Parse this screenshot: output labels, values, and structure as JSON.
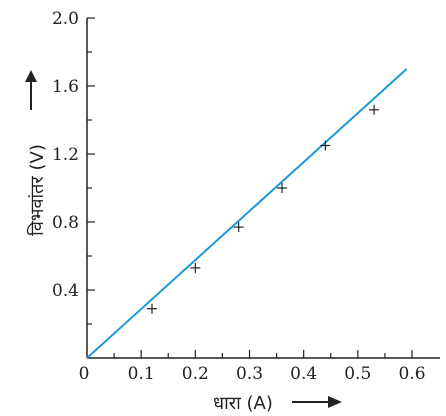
{
  "chart_data": {
    "type": "line",
    "xlabel": "धारा (A)",
    "ylabel": "विभवांतर (V)",
    "xlim": [
      0,
      0.6
    ],
    "ylim": [
      0,
      2.0
    ],
    "x_ticks": [
      "0",
      "0.1",
      "0.2",
      "0.3",
      "0.4",
      "0.5",
      "0.6"
    ],
    "y_ticks": [
      "0.4",
      "0.8",
      "1.2",
      "1.6",
      "2.0"
    ],
    "grid": false,
    "series": [
      {
        "kind": "fit-line",
        "color": "#1a9ad6",
        "points": [
          {
            "x": 0,
            "y": 0
          },
          {
            "x": 0.59,
            "y": 1.7
          }
        ]
      },
      {
        "kind": "measured-points",
        "marker": "plus",
        "color": "#222222",
        "points": [
          {
            "x": 0.12,
            "y": 0.29
          },
          {
            "x": 0.2,
            "y": 0.53
          },
          {
            "x": 0.28,
            "y": 0.77
          },
          {
            "x": 0.36,
            "y": 1.0
          },
          {
            "x": 0.44,
            "y": 1.25
          },
          {
            "x": 0.53,
            "y": 1.46
          }
        ]
      }
    ]
  }
}
